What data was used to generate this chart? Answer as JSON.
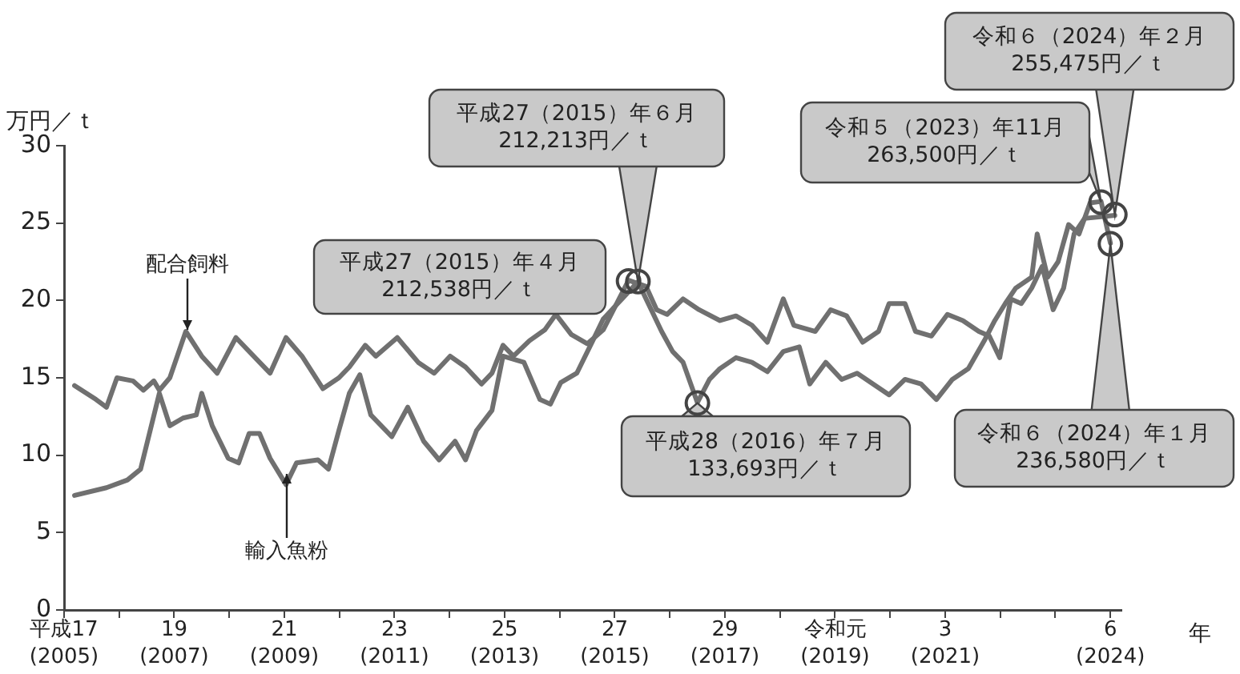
{
  "chart_data": {
    "type": "line",
    "xlabel": "年",
    "ylabel": "万円／ｔ",
    "xlim": [
      2005,
      2024.2
    ],
    "ylim": [
      0,
      30
    ],
    "yticks": [
      0,
      5,
      10,
      15,
      20,
      25,
      30
    ],
    "xticks": [
      {
        "value": 2005,
        "label": "(2005)"
      },
      {
        "value": 2006,
        "label": null
      },
      {
        "value": 2007,
        "label": "(2007)"
      },
      {
        "value": 2008,
        "label": null
      },
      {
        "value": 2009,
        "label": "(2009)"
      },
      {
        "value": 2010,
        "label": null
      },
      {
        "value": 2011,
        "label": "(2011)"
      },
      {
        "value": 2012,
        "label": null
      },
      {
        "value": 2013,
        "label": "(2013)"
      },
      {
        "value": 2014,
        "label": null
      },
      {
        "value": 2015,
        "label": "(2015)"
      },
      {
        "value": 2016,
        "label": null
      },
      {
        "value": 2017,
        "label": "(2017)"
      },
      {
        "value": 2018,
        "label": null
      },
      {
        "value": 2019,
        "label": "(2019)"
      },
      {
        "value": 2020,
        "label": null
      },
      {
        "value": 2021,
        "label": "(2021)"
      },
      {
        "value": 2022,
        "label": null
      },
      {
        "value": 2023,
        "label": null
      },
      {
        "value": 2024,
        "label": "(2024)"
      }
    ],
    "grid": false,
    "legend": false,
    "series": [
      {
        "name": "配合飼料",
        "color": "#707070",
        "x": [
          2005.19,
          2005.58,
          2005.77,
          2005.96,
          2006.25,
          2006.44,
          2006.63,
          2006.73,
          2006.92,
          2007.21,
          2007.5,
          2007.78,
          2008.12,
          2008.55,
          2008.74,
          2009.03,
          2009.32,
          2009.7,
          2009.99,
          2010.18,
          2010.47,
          2010.66,
          2011.05,
          2011.43,
          2011.72,
          2012.01,
          2012.29,
          2012.58,
          2012.77,
          2012.97,
          2013.16,
          2013.45,
          2013.73,
          2013.93,
          2014.21,
          2014.5,
          2014.79,
          2015.25,
          2015.57,
          2015.76,
          2015.95,
          2016.24,
          2016.53,
          2016.91,
          2017.2,
          2017.49,
          2017.77,
          2018.06,
          2018.25,
          2018.64,
          2018.92,
          2019.21,
          2019.5,
          2019.79,
          2019.98,
          2020.27,
          2020.46,
          2020.75,
          2021.04,
          2021.32,
          2021.61,
          2021.8,
          2021.99,
          2022.19,
          2022.38,
          2022.57,
          2022.76,
          2022.96,
          2023.15,
          2023.34,
          2023.53,
          2024.08
        ],
        "values": [
          14.5,
          13.6,
          13.1,
          15.0,
          14.8,
          14.2,
          14.8,
          14.2,
          15.0,
          18.0,
          16.4,
          15.3,
          17.6,
          16.0,
          15.3,
          17.6,
          16.4,
          14.3,
          15.0,
          15.7,
          17.1,
          16.4,
          17.6,
          16.0,
          15.3,
          16.4,
          15.7,
          14.6,
          15.3,
          17.1,
          16.4,
          17.4,
          18.1,
          19.1,
          17.8,
          17.2,
          18.1,
          21.3,
          20.9,
          19.4,
          19.1,
          20.1,
          19.4,
          18.7,
          19.0,
          18.4,
          17.3,
          20.1,
          18.4,
          18.0,
          19.4,
          19.0,
          17.3,
          18.0,
          19.8,
          19.8,
          18.0,
          17.7,
          19.1,
          18.7,
          18.0,
          17.7,
          16.3,
          20.1,
          19.8,
          20.8,
          22.2,
          19.4,
          20.8,
          24.3,
          25.3,
          25.5
        ]
      },
      {
        "name": "輸入魚粉",
        "color": "#707070",
        "x": [
          2005.19,
          2005.77,
          2006.15,
          2006.39,
          2006.73,
          2006.92,
          2007.16,
          2007.4,
          2007.5,
          2007.69,
          2007.98,
          2008.17,
          2008.36,
          2008.55,
          2008.74,
          2009.03,
          2009.22,
          2009.61,
          2009.8,
          2009.99,
          2010.18,
          2010.37,
          2010.57,
          2010.95,
          2011.24,
          2011.53,
          2011.81,
          2012.1,
          2012.29,
          2012.49,
          2012.77,
          2012.97,
          2013.35,
          2013.64,
          2013.83,
          2014.02,
          2014.31,
          2014.6,
          2014.79,
          2015.42,
          2015.85,
          2016.05,
          2016.24,
          2016.5,
          2016.72,
          2016.91,
          2017.2,
          2017.49,
          2017.77,
          2018.06,
          2018.35,
          2018.54,
          2018.83,
          2019.12,
          2019.4,
          2019.69,
          2019.98,
          2020.27,
          2020.56,
          2020.84,
          2021.13,
          2021.42,
          2021.71,
          2021.9,
          2022.09,
          2022.28,
          2022.57,
          2022.67,
          2022.86,
          2023.05,
          2023.24,
          2023.43,
          2023.63,
          2023.83,
          2024.0
        ],
        "values": [
          7.4,
          7.9,
          8.4,
          9.1,
          14.0,
          11.9,
          12.4,
          12.6,
          14.0,
          11.9,
          9.8,
          9.5,
          11.4,
          11.4,
          9.8,
          8.1,
          9.5,
          9.7,
          9.1,
          11.6,
          14.0,
          15.2,
          12.6,
          11.2,
          13.1,
          10.9,
          9.7,
          10.9,
          9.7,
          11.6,
          12.9,
          16.4,
          16.0,
          13.6,
          13.3,
          14.7,
          15.3,
          17.4,
          18.8,
          21.2,
          18.0,
          16.7,
          16.0,
          13.4,
          14.9,
          15.6,
          16.3,
          16.0,
          15.4,
          16.7,
          17.0,
          14.6,
          16.0,
          14.9,
          15.3,
          14.6,
          13.9,
          14.9,
          14.6,
          13.6,
          14.9,
          15.6,
          17.4,
          18.7,
          19.8,
          20.8,
          21.5,
          24.3,
          21.5,
          22.5,
          24.9,
          24.3,
          26.3,
          26.4,
          23.7
        ]
      }
    ],
    "annotations": [
      {
        "text": "平成27（2015）年４月\n212,538円／ｔ",
        "x": 2015.25,
        "y": 21.2538
      },
      {
        "text": "平成27（2015）年６月\n212,213円／ｔ",
        "x": 2015.42,
        "y": 21.2213
      },
      {
        "text": "平成28（2016）年７月\n133,693円／ｔ",
        "x": 2016.5,
        "y": 13.3693
      },
      {
        "text": "令和５（2023）年11月\n263,500円／ｔ",
        "x": 2023.83,
        "y": 26.35
      },
      {
        "text": "令和６（2024）年１月\n236,580円／ｔ",
        "x": 2024.0,
        "y": 23.658
      },
      {
        "text": "令和６（2024）年２月\n255,475円／ｔ",
        "x": 2024.08,
        "y": 25.5475
      },
      "平成17",
      "19",
      "21",
      "23",
      "25",
      "27",
      "29",
      "令和元",
      "3",
      "6"
    ]
  }
}
